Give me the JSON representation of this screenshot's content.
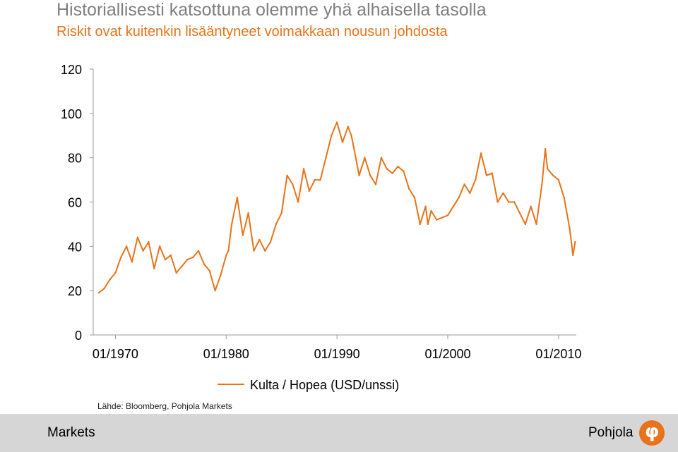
{
  "header": {
    "title": "Historiallisesti katsottuna olemme yhä alhaisella tasolla",
    "subtitle": "Riskit ovat kuitenkin lisääntyneet voimakkaan nousun johdosta"
  },
  "source": "Lähde: Bloomberg, Pohjola Markets",
  "footer": {
    "left_label": "Markets",
    "right_label": "Pohjola",
    "logo_icon": "pohjola-logo-icon"
  },
  "colors": {
    "series": "#e8731a",
    "axis": "#999999",
    "footer_bg": "#d6d6d6"
  },
  "chart_data": {
    "type": "line",
    "title": "",
    "xlabel": "",
    "ylabel": "",
    "ylim": [
      0,
      120
    ],
    "yticks": [
      0,
      20,
      40,
      60,
      80,
      100,
      120
    ],
    "xlim": [
      1968.0,
      2011.6
    ],
    "xticks": [
      {
        "value": 1970,
        "label": "01/1970"
      },
      {
        "value": 1980,
        "label": "01/1980"
      },
      {
        "value": 1990,
        "label": "01/1990"
      },
      {
        "value": 2000,
        "label": "01/2000"
      },
      {
        "value": 2010,
        "label": "01/2010"
      }
    ],
    "legend_position": "bottom",
    "grid": false,
    "series": [
      {
        "name": "Kulta / Hopea (USD/unssi)",
        "x": [
          1968.5,
          1969.0,
          1969.5,
          1970.0,
          1970.5,
          1971.0,
          1971.5,
          1972.0,
          1972.5,
          1973.0,
          1973.5,
          1974.0,
          1974.5,
          1975.0,
          1975.5,
          1976.0,
          1976.5,
          1977.0,
          1977.5,
          1978.0,
          1978.5,
          1979.0,
          1979.5,
          1980.0,
          1980.2,
          1980.5,
          1981.0,
          1981.5,
          1982.0,
          1982.5,
          1983.0,
          1983.5,
          1984.0,
          1984.5,
          1985.0,
          1985.5,
          1986.0,
          1986.5,
          1987.0,
          1987.5,
          1988.0,
          1988.5,
          1989.0,
          1989.5,
          1990.0,
          1990.5,
          1991.0,
          1991.3,
          1991.5,
          1992.0,
          1992.5,
          1993.0,
          1993.5,
          1994.0,
          1994.5,
          1995.0,
          1995.5,
          1996.0,
          1996.5,
          1997.0,
          1997.5,
          1998.0,
          1998.2,
          1998.5,
          1999.0,
          1999.5,
          2000.0,
          2000.5,
          2001.0,
          2001.5,
          2002.0,
          2002.5,
          2003.0,
          2003.5,
          2004.0,
          2004.5,
          2005.0,
          2005.5,
          2006.0,
          2006.5,
          2007.0,
          2007.5,
          2008.0,
          2008.5,
          2008.8,
          2009.0,
          2009.5,
          2010.0,
          2010.5,
          2011.0,
          2011.3,
          2011.5
        ],
        "y": [
          19,
          21,
          25,
          28,
          35,
          40,
          33,
          44,
          38,
          42,
          30,
          40,
          34,
          36,
          28,
          31,
          34,
          35,
          38,
          32,
          29,
          20,
          27,
          36,
          38,
          50,
          62,
          45,
          55,
          38,
          43,
          38,
          42,
          50,
          55,
          72,
          68,
          60,
          75,
          65,
          70,
          70,
          80,
          90,
          96,
          87,
          94,
          90,
          85,
          72,
          80,
          72,
          68,
          80,
          75,
          73,
          76,
          74,
          66,
          62,
          50,
          58,
          50,
          56,
          52,
          53,
          54,
          58,
          62,
          68,
          64,
          70,
          82,
          72,
          73,
          60,
          64,
          60,
          60,
          55,
          50,
          58,
          50,
          68,
          84,
          75,
          72,
          70,
          62,
          48,
          36,
          42
        ]
      }
    ]
  }
}
